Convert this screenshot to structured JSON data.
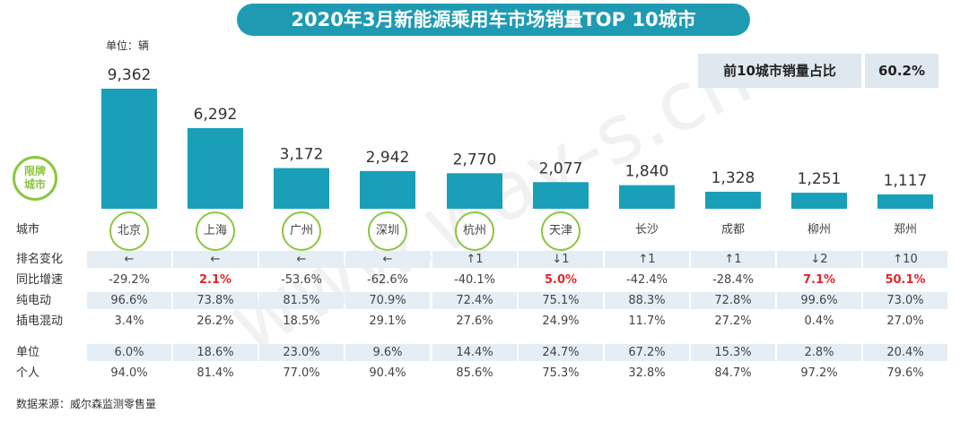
{
  "title": "2020年3月新能源乘用车市场销量TOP 10城市",
  "unit_label": "单位：辆",
  "summary": {
    "label": "前10城市销量占比",
    "value": "60.2%"
  },
  "badge": {
    "line1": "限牌",
    "line2": "城市"
  },
  "watermark": "www.way-s.cn",
  "source": "数据来源：威尔森监测零售量",
  "colors": {
    "bar": "#1a9fb8",
    "title_bg": "#1e9bb2",
    "circle": "#8cc63f",
    "highlight": "#e0262c",
    "row_shade": "#e5edf5"
  },
  "row_labels": {
    "city": "城市",
    "rank": "排名变化",
    "yoy": "同比增速",
    "bev": "纯电动",
    "phev": "插电混动",
    "org": "单位",
    "personal": "个人"
  },
  "chart_data": {
    "type": "bar",
    "categories": [
      "北京",
      "上海",
      "广州",
      "深圳",
      "杭州",
      "天津",
      "长沙",
      "成都",
      "柳州",
      "郑州"
    ],
    "values": [
      9362,
      6292,
      3172,
      2942,
      2770,
      2077,
      1840,
      1328,
      1251,
      1117
    ],
    "value_labels": [
      "9,362",
      "6,292",
      "3,172",
      "2,942",
      "2,770",
      "2,077",
      "1,840",
      "1,328",
      "1,251",
      "1,117"
    ],
    "restricted": [
      true,
      true,
      true,
      true,
      true,
      true,
      false,
      false,
      false,
      false
    ],
    "ylim": [
      0,
      9362
    ],
    "title": "2020年3月新能源乘用车市场销量TOP 10城市"
  },
  "table": {
    "rank_change": [
      "←",
      "←",
      "←",
      "←",
      "↑1",
      "↓1",
      "↑1",
      "↑1",
      "↓2",
      "↑10"
    ],
    "yoy": [
      "-29.2%",
      "2.1%",
      "-53.6%",
      "-62.6%",
      "-40.1%",
      "5.0%",
      "-42.4%",
      "-28.4%",
      "7.1%",
      "50.1%"
    ],
    "yoy_positive": [
      false,
      true,
      false,
      false,
      false,
      true,
      false,
      false,
      true,
      true
    ],
    "bev": [
      "96.6%",
      "73.8%",
      "81.5%",
      "70.9%",
      "72.4%",
      "75.1%",
      "88.3%",
      "72.8%",
      "99.6%",
      "73.0%"
    ],
    "phev": [
      "3.4%",
      "26.2%",
      "18.5%",
      "29.1%",
      "27.6%",
      "24.9%",
      "11.7%",
      "27.2%",
      "0.4%",
      "27.0%"
    ],
    "org": [
      "6.0%",
      "18.6%",
      "23.0%",
      "9.6%",
      "14.4%",
      "24.7%",
      "67.2%",
      "15.3%",
      "2.8%",
      "20.4%"
    ],
    "personal": [
      "94.0%",
      "81.4%",
      "77.0%",
      "90.4%",
      "85.6%",
      "75.3%",
      "32.8%",
      "84.7%",
      "97.2%",
      "79.6%"
    ]
  }
}
